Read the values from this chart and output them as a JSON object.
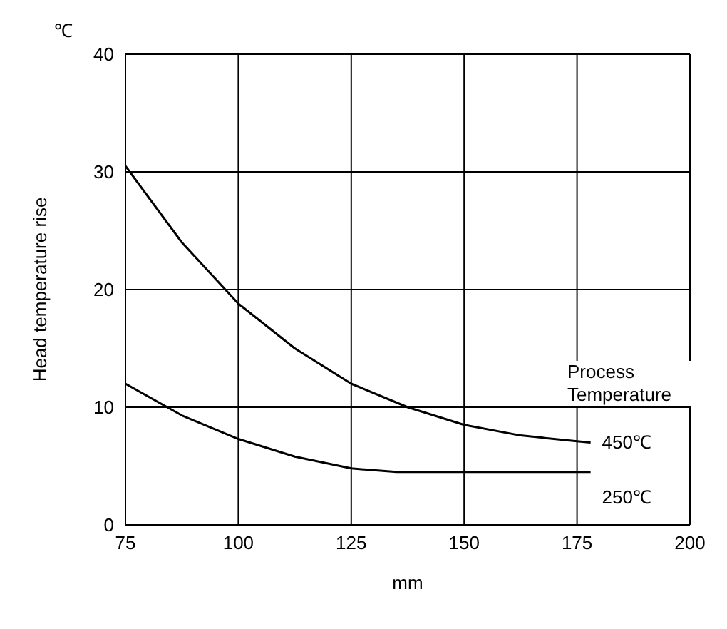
{
  "chart_data": {
    "type": "line",
    "ylabel": "Head temperature rise",
    "xlabel": "mm",
    "legend_title": "Process Temperature",
    "annotations": [
      "℃"
    ],
    "xlim": [
      75,
      200
    ],
    "xticks": [
      75,
      100,
      125,
      150,
      175,
      200
    ],
    "ylim": [
      0,
      40
    ],
    "yticks": [
      0,
      10,
      20,
      30,
      40
    ],
    "grid": true,
    "marker": "none",
    "line_style": "solid",
    "series": [
      {
        "name": "450℃",
        "color": "#000000",
        "x": [
          75,
          87.5,
          100,
          112.5,
          125,
          137.5,
          150,
          162.5,
          175,
          178
        ],
        "values": [
          30.5,
          24,
          18.8,
          15,
          12,
          10,
          8.5,
          7.6,
          7.1,
          7
        ]
      },
      {
        "name": "250℃",
        "color": "#000000",
        "x": [
          75,
          87.5,
          100,
          112.5,
          125,
          135,
          150,
          165,
          178
        ],
        "values": [
          12,
          9.3,
          7.3,
          5.8,
          4.8,
          4.5,
          4.5,
          4.5,
          4.5
        ]
      }
    ]
  }
}
